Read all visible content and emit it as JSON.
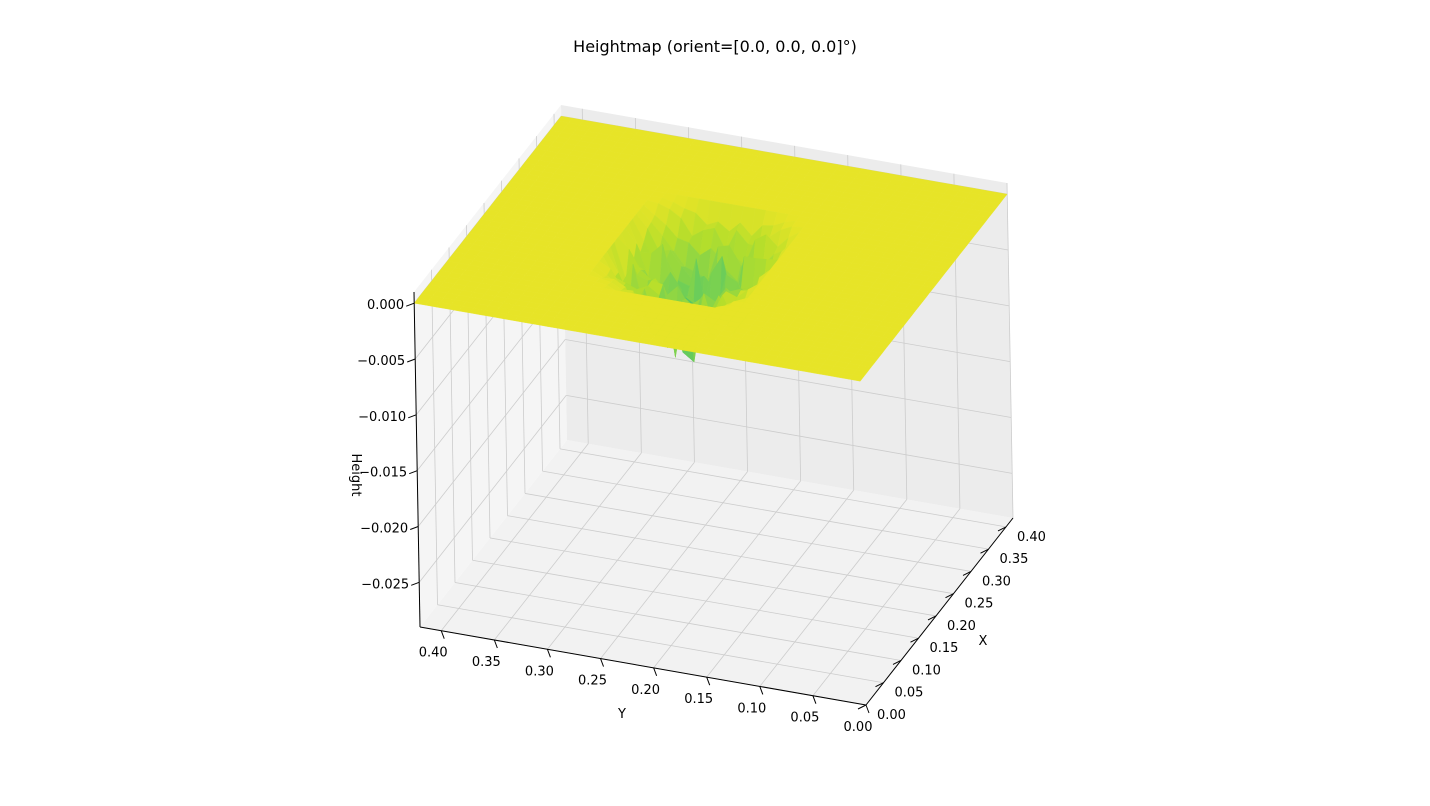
{
  "chart_data": {
    "type": "surface3d",
    "title": "Heightmap (orient=[0.0, 0.0, 0.0]°)",
    "xlabel": "X",
    "ylabel": "Y",
    "zlabel": "Height",
    "colormap": "viridis",
    "xlim": [
      0.0,
      0.42
    ],
    "ylim": [
      0.0,
      0.42
    ],
    "zlim": [
      -0.029,
      0.001
    ],
    "grid": true,
    "x_ticks": [
      "0.00",
      "0.05",
      "0.10",
      "0.15",
      "0.20",
      "0.25",
      "0.30",
      "0.35",
      "0.40"
    ],
    "y_ticks": [
      "0.00",
      "0.05",
      "0.10",
      "0.15",
      "0.20",
      "0.25",
      "0.30",
      "0.35",
      "0.40"
    ],
    "z_ticks": [
      "0.000",
      "−0.005",
      "−0.010",
      "−0.015",
      "−0.020",
      "−0.025"
    ],
    "surface_base_height": 0.0,
    "depression": {
      "region_x": [
        0.1,
        0.3
      ],
      "region_y": [
        0.15,
        0.29
      ],
      "min_height": -0.027
    }
  }
}
